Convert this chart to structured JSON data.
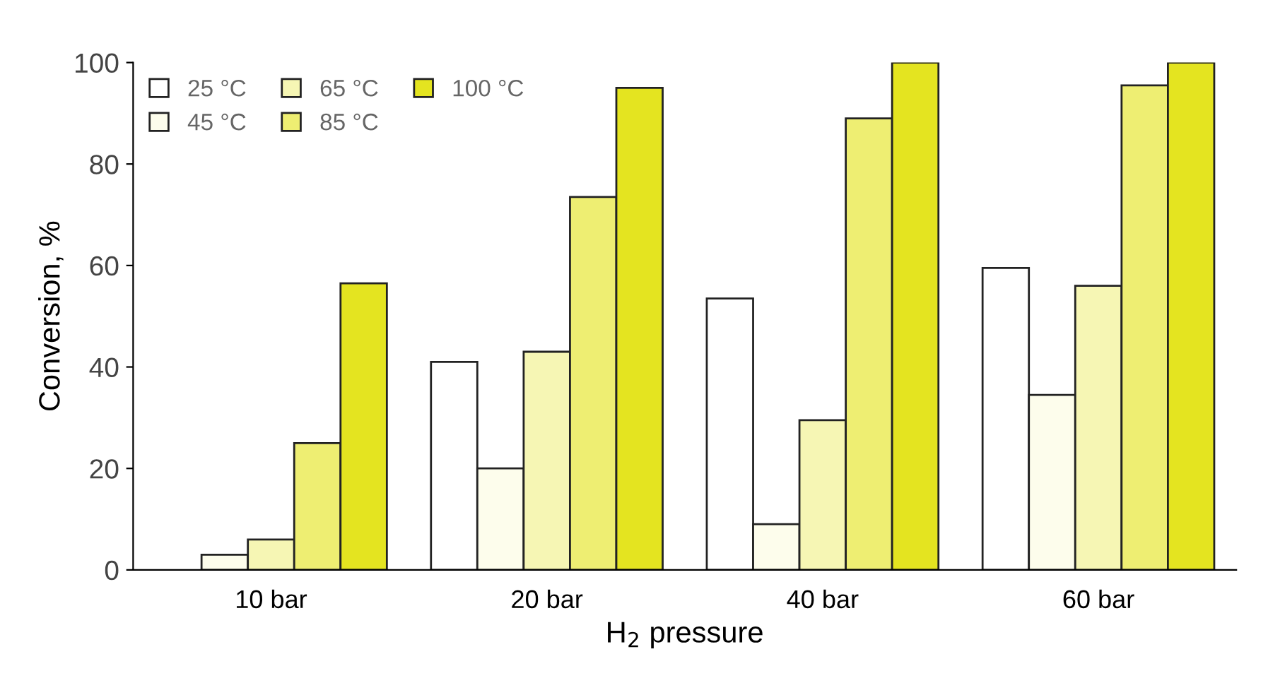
{
  "chart_data": {
    "type": "bar",
    "xlabel": "H$_{2}$ pressure",
    "ylabel": "Conversion, %",
    "categories": [
      "10 bar",
      "20 bar",
      "40 bar",
      "60 bar"
    ],
    "series": [
      {
        "name": "25 °C",
        "color": "#ffffff",
        "values": [
          0,
          41,
          53.5,
          59.5
        ]
      },
      {
        "name": "45 °C",
        "color": "#fdfdec",
        "values": [
          3,
          20,
          9,
          34.5
        ]
      },
      {
        "name": "65 °C",
        "color": "#f6f6b4",
        "values": [
          6,
          43,
          29.5,
          56
        ]
      },
      {
        "name": "85 °C",
        "color": "#eeee72",
        "values": [
          25,
          73.5,
          89,
          95.5
        ]
      },
      {
        "name": "100 °C",
        "color": "#e4e420",
        "values": [
          56.5,
          95,
          100,
          100
        ]
      }
    ],
    "ylim": [
      0,
      100
    ],
    "yticks": [
      0,
      20,
      40,
      60,
      80,
      100
    ],
    "grid": false,
    "legend": "top left"
  }
}
